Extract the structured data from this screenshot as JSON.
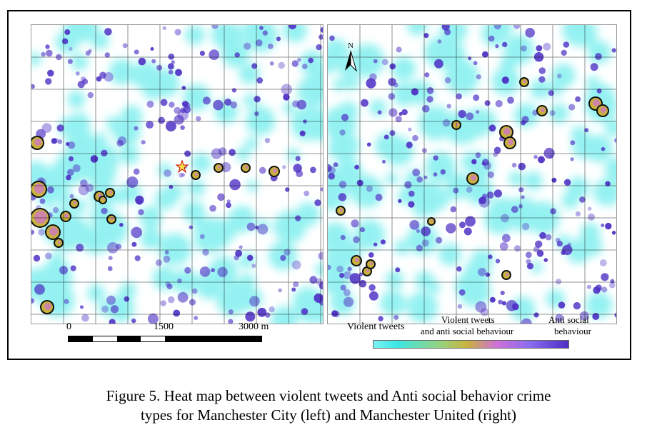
{
  "figure": {
    "left_map": {
      "scale": {
        "label_0": "0",
        "label_1500": "1500",
        "label_3000": "3000 m"
      },
      "landmark_icon": "star-icon"
    },
    "right_map": {
      "north_label": "N",
      "north_icon": "north-arrow-icon"
    },
    "legend": {
      "label_violent": "Violent  tweets",
      "label_both_line1": "Violent tweets",
      "label_both_line2": "and anti social behaviour",
      "label_asb_line1": "Anti social",
      "label_asb_line2": "behaviour",
      "colors": {
        "violent_tweets": "#3ce6e6",
        "both": "#c8b23c",
        "both_hot": "#d070d6",
        "anti_social": "#4c2ec4"
      }
    },
    "caption_line1": "Figure 5.  Heat map between violent tweets and Anti social behavior crime",
    "caption_line2": "types for Manchester City (left) and Manchester United (right)"
  }
}
